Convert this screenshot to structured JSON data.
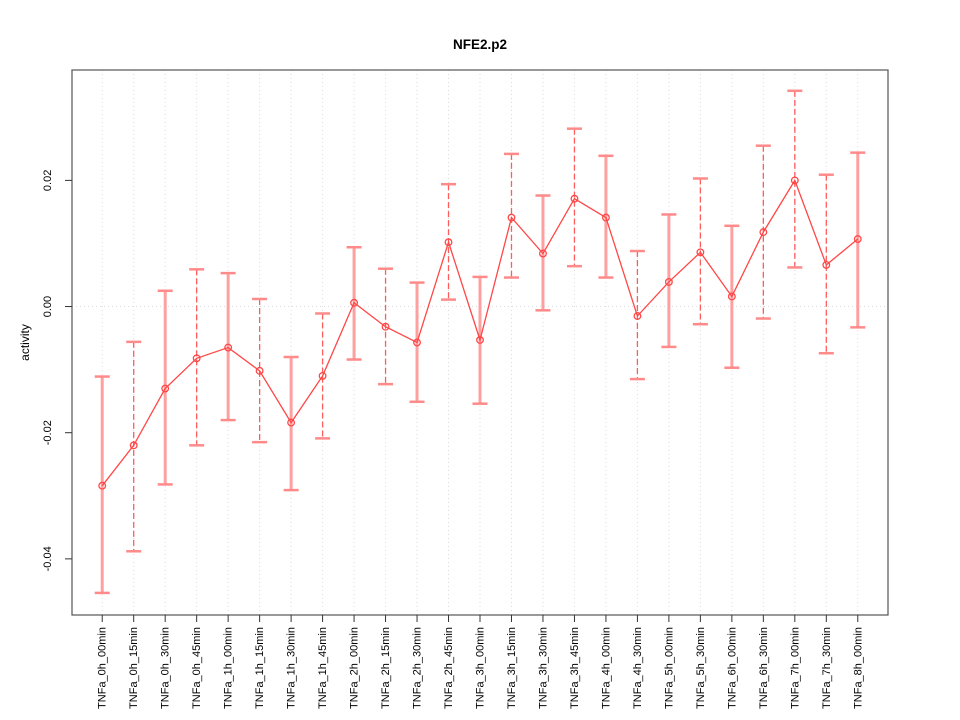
{
  "chart_data": {
    "type": "line",
    "title": "NFE2.p2",
    "xlabel": "",
    "ylabel": "activity",
    "categories": [
      "TNFa_0h_00min",
      "TNFa_0h_15min",
      "TNFa_0h_30min",
      "TNFa_0h_45min",
      "TNFa_1h_00min",
      "TNFa_1h_15min",
      "TNFa_1h_30min",
      "TNFa_1h_45min",
      "TNFa_2h_00min",
      "TNFa_2h_15min",
      "TNFa_2h_30min",
      "TNFa_2h_45min",
      "TNFa_3h_00min",
      "TNFa_3h_15min",
      "TNFa_3h_30min",
      "TNFa_3h_45min",
      "TNFa_4h_00min",
      "TNFa_4h_30min",
      "TNFa_5h_00min",
      "TNFa_5h_30min",
      "TNFa_6h_00min",
      "TNFa_6h_30min",
      "TNFa_7h_00min",
      "TNFa_7h_30min",
      "TNFa_8h_00min"
    ],
    "series": [
      {
        "name": "activity",
        "values": [
          -0.0284,
          -0.022,
          -0.013,
          -0.0082,
          -0.0065,
          -0.0102,
          -0.0184,
          -0.011,
          0.0006,
          -0.0032,
          -0.0057,
          0.0102,
          -0.0053,
          0.0141,
          0.0084,
          0.0171,
          0.0141,
          -0.0015,
          0.0039,
          0.0086,
          0.0016,
          0.0118,
          0.02,
          0.0066,
          0.0107
        ],
        "error_high": [
          -0.0111,
          -0.0056,
          0.0025,
          0.0059,
          0.0053,
          0.0012,
          -0.008,
          -0.0011,
          0.0094,
          0.006,
          0.0038,
          0.0194,
          0.0047,
          0.0242,
          0.0176,
          0.0282,
          0.0239,
          0.0088,
          0.0146,
          0.0203,
          0.0128,
          0.0255,
          0.0342,
          0.0209,
          0.0244
        ],
        "error_low": [
          -0.0454,
          -0.0388,
          -0.0282,
          -0.022,
          -0.018,
          -0.0215,
          -0.0291,
          -0.0209,
          -0.0084,
          -0.0123,
          -0.0151,
          0.0011,
          -0.0154,
          0.0046,
          -0.0006,
          0.0064,
          0.0046,
          -0.0115,
          -0.0064,
          -0.0028,
          -0.0097,
          -0.0019,
          0.0062,
          -0.0074,
          -0.0033
        ],
        "errorbar_styles": [
          "solid",
          "dashed",
          "solid",
          "dashed",
          "solid",
          "dashed",
          "solid",
          "dashed",
          "solid",
          "dashed",
          "solid",
          "dashed",
          "solid",
          "dashed",
          "solid",
          "dashed",
          "solid",
          "dashed",
          "solid",
          "dashed",
          "solid",
          "dashed",
          "dashed",
          "dashed",
          "solid"
        ]
      }
    ],
    "ylim": [
      -0.0489,
      0.0375
    ],
    "yticks": [
      {
        "value": -0.04,
        "label": "-0.04"
      },
      {
        "value": -0.02,
        "label": "-0.02"
      },
      {
        "value": 0.0,
        "label": "0.00"
      },
      {
        "value": 0.02,
        "label": "0.02"
      }
    ],
    "zero_line": 0,
    "grid": "vertical-dotted",
    "legend": "none",
    "colors": {
      "line": "#FF4747",
      "point_stroke": "#FF4747",
      "errorbar_solid": "#FFA0A0",
      "errorbar_dashed": "#FF5C5C",
      "errorbar_cap": "#FF8A8A",
      "gridline": "#DCDCDC",
      "zero_line_color": "#DCDCDC",
      "box": "#555555",
      "tick": "#333333",
      "text": "#000000"
    }
  }
}
